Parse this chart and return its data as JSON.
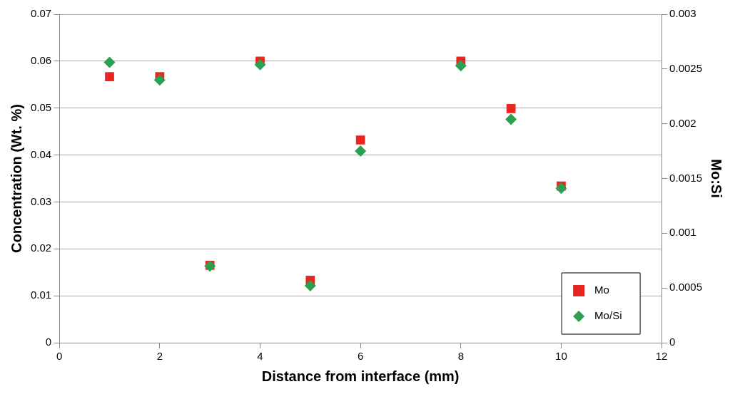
{
  "chart_data": {
    "type": "scatter",
    "xlabel": "Distance from interface (mm)",
    "ylabel": "Concentration (Wt. %)",
    "y2label": "Mo:Si",
    "x": [
      1,
      2,
      3,
      4,
      5,
      6,
      8,
      9,
      10
    ],
    "series": [
      {
        "name": "Mo",
        "color": "#e8251e",
        "marker": "square",
        "values": [
          0.0567,
          0.0567,
          0.0165,
          0.06,
          0.0133,
          0.0432,
          0.06,
          0.0499,
          0.0334
        ]
      },
      {
        "name": "Mo/Si",
        "color": "#2aa050",
        "marker": "diamond",
        "axis": "y2",
        "values": [
          0.00256,
          0.0024,
          0.0007,
          0.00254,
          0.00052,
          0.00175,
          0.00253,
          0.00204,
          0.00141
        ]
      }
    ],
    "xlim": [
      0,
      12
    ],
    "xticks": [
      0,
      2,
      4,
      6,
      8,
      10,
      12
    ],
    "ylim": [
      0,
      0.07
    ],
    "yticks": [
      0,
      0.01,
      0.02,
      0.03,
      0.04,
      0.05,
      0.06,
      0.07
    ],
    "y2lim": [
      0,
      0.003
    ],
    "y2ticks": [
      0,
      0.0005,
      0.001,
      0.0015,
      0.002,
      0.0025,
      0.003
    ],
    "grid": "y",
    "legend": "bottom right"
  }
}
